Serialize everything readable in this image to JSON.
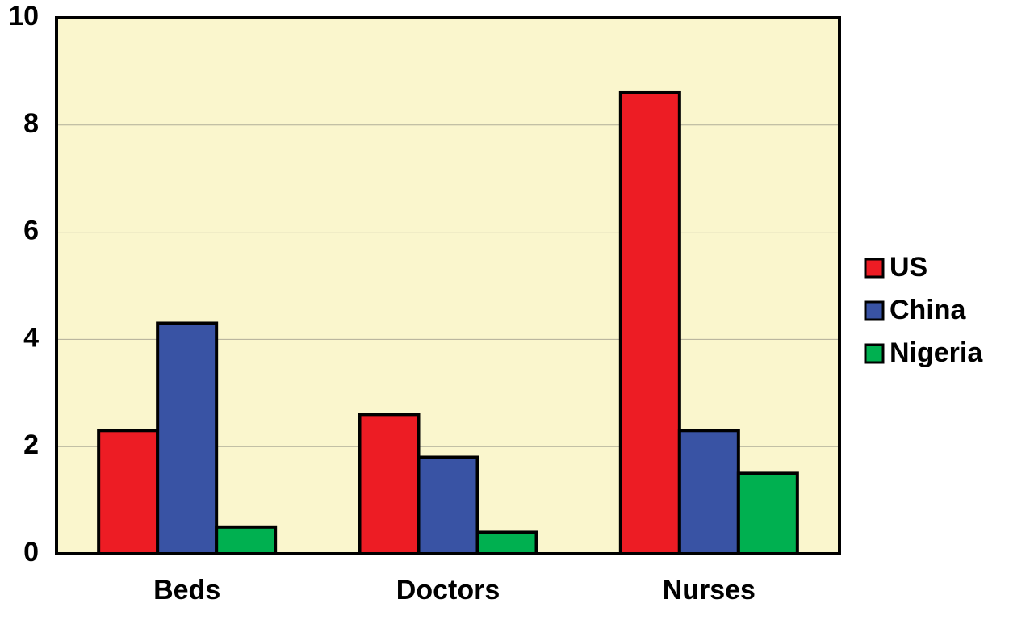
{
  "chart_data": {
    "type": "bar",
    "categories": [
      "Beds",
      "Doctors",
      "Nurses"
    ],
    "series": [
      {
        "name": "US",
        "color": "#ed1c24",
        "values": [
          2.3,
          2.6,
          8.6
        ]
      },
      {
        "name": "China",
        "color": "#3953a4",
        "values": [
          4.3,
          1.8,
          2.3
        ]
      },
      {
        "name": "Nigeria",
        "color": "#00b050",
        "values": [
          0.5,
          0.4,
          1.5
        ]
      }
    ],
    "ylim": [
      0,
      10
    ],
    "yticks": [
      0,
      2,
      4,
      6,
      8,
      10
    ],
    "grid": true,
    "legend": "right"
  }
}
